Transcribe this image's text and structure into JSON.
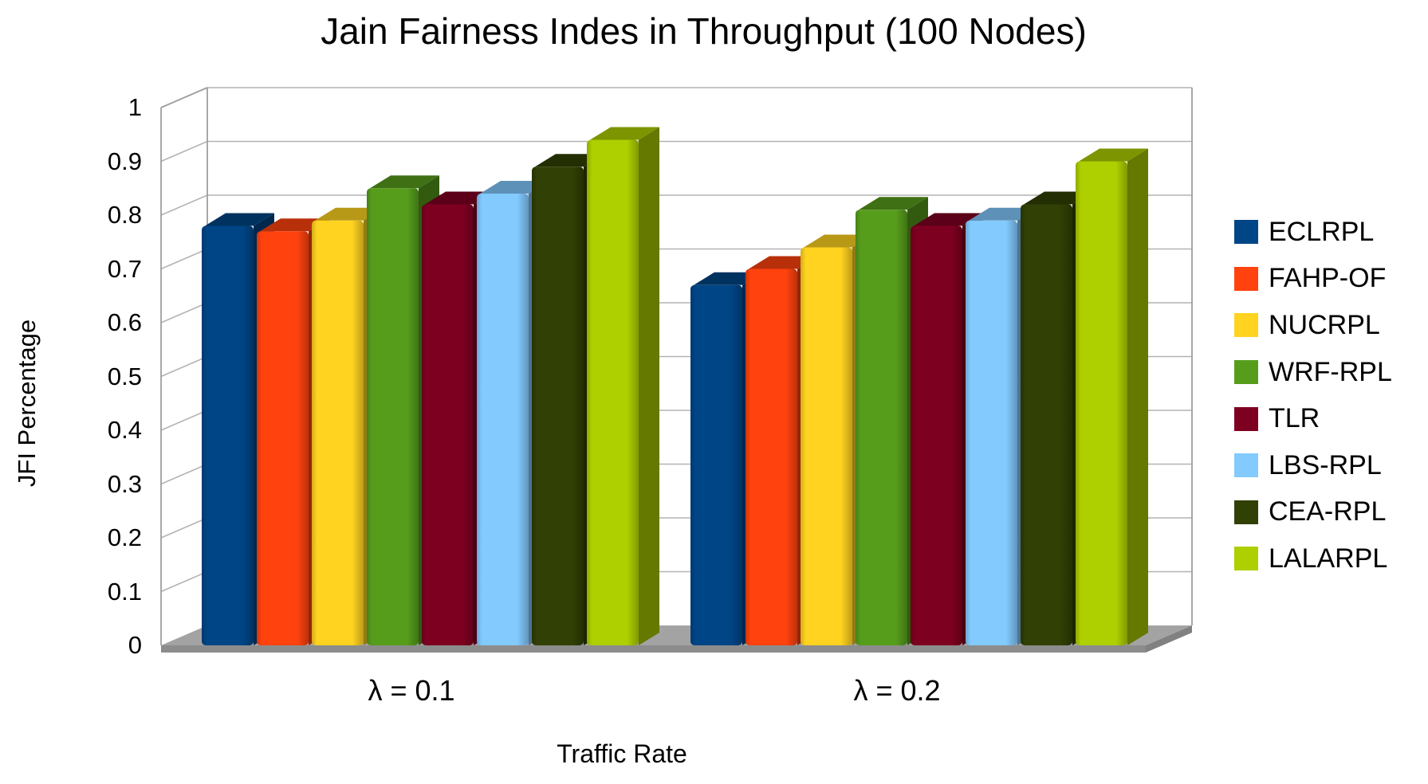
{
  "chart_data": {
    "type": "bar",
    "projection": "3d",
    "title": "Jain Fairness Indes in Throughput (100 Nodes)",
    "xlabel": "Traffic Rate",
    "ylabel": "JFI Percentage",
    "ylim": [
      0,
      1
    ],
    "ytick_step": 0.1,
    "yticks": [
      "0",
      "0.1",
      "0.2",
      "0.3",
      "0.4",
      "0.5",
      "0.6",
      "0.7",
      "0.8",
      "0.9",
      "1"
    ],
    "categories": [
      "λ = 0.1",
      "λ = 0.2"
    ],
    "series": [
      {
        "name": "ECLRPL",
        "color": "#004586",
        "values": [
          0.78,
          0.67
        ]
      },
      {
        "name": "FAHP-OF",
        "color": "#ff420e",
        "values": [
          0.77,
          0.7
        ]
      },
      {
        "name": "NUCRPL",
        "color": "#ffd320",
        "values": [
          0.79,
          0.74
        ]
      },
      {
        "name": "WRF-RPL",
        "color": "#579d1c",
        "values": [
          0.85,
          0.81
        ]
      },
      {
        "name": "TLR",
        "color": "#7e0021",
        "values": [
          0.82,
          0.78
        ]
      },
      {
        "name": "LBS-RPL",
        "color": "#83caff",
        "values": [
          0.84,
          0.79
        ]
      },
      {
        "name": "CEA-RPL",
        "color": "#314004",
        "values": [
          0.89,
          0.82
        ]
      },
      {
        "name": "LALARPL",
        "color": "#aecf00",
        "values": [
          0.94,
          0.9
        ]
      }
    ],
    "legend_position": "right",
    "grid": true,
    "colors": {
      "background": "#ffffff",
      "wall": "#ffffff",
      "gridline": "#b3b3b3",
      "wall_edge": "#9e9e9e",
      "floor_top": "#a3a3a3",
      "floor_front": "#8c8c8c",
      "text": "#000000"
    }
  }
}
